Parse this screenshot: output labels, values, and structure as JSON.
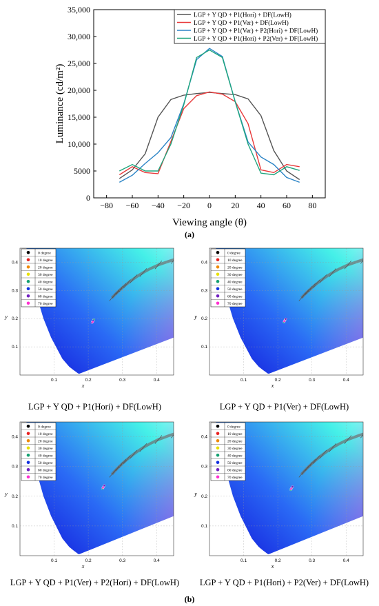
{
  "chart_data": [
    {
      "type": "line",
      "xlabel": "Viewing angle (θ)",
      "ylabel": "Luminance (cd/m²)",
      "xlim": [
        -90,
        90
      ],
      "ylim": [
        0,
        35000
      ],
      "xticks": [
        "−80",
        "−60",
        "−40",
        "−20",
        "0",
        "20",
        "40",
        "60",
        "80"
      ],
      "yticks": [
        "0",
        "5000",
        "10,000",
        "15,000",
        "20,000",
        "25,000",
        "30,000",
        "35,000"
      ],
      "legend_position": "top-right",
      "x": [
        -70,
        -60,
        -50,
        -40,
        -30,
        -20,
        -10,
        0,
        10,
        20,
        30,
        40,
        50,
        60,
        70
      ],
      "series": [
        {
          "name": "LGP + Y QD + P1(Hori) + DF(LowH)",
          "color": "#555555",
          "values": [
            3600,
            5200,
            8200,
            15000,
            18300,
            19100,
            19400,
            19600,
            19400,
            19200,
            18400,
            15300,
            8800,
            5000,
            3400
          ]
        },
        {
          "name": "LGP + Y QD + P1(Ver) + DF(LowH)",
          "color": "#e8393a",
          "values": [
            4300,
            5800,
            4700,
            4500,
            10500,
            16600,
            19000,
            19700,
            19300,
            17900,
            13800,
            5200,
            4700,
            6200,
            5800
          ]
        },
        {
          "name": "LGP + Y QD + P1(Ver) + P2(Hori) + DF(LowH)",
          "color": "#2b84c6",
          "values": [
            2900,
            4200,
            6400,
            8400,
            11200,
            17500,
            25700,
            27800,
            26300,
            17900,
            10400,
            7600,
            6200,
            3800,
            2900
          ]
        },
        {
          "name": "LGP + Y QD + P1(Hori) + P2(Ver) + DF(LowH)",
          "color": "#1fa57e",
          "values": [
            5000,
            6200,
            5000,
            5000,
            10000,
            17300,
            26100,
            27500,
            26100,
            17900,
            10000,
            4600,
            4300,
            5800,
            5100
          ]
        }
      ]
    },
    {
      "type": "scatter",
      "title": "LGP + Y QD + P1(Hori) + DF(LowH)",
      "xlabel": "x",
      "ylabel": "y",
      "xlim": [
        0,
        0.45
      ],
      "ylim": [
        0,
        0.45
      ],
      "xticks": [
        "0.1",
        "0.2",
        "0.3",
        "0.4"
      ],
      "yticks": [
        "0.1",
        "0.2",
        "0.3",
        "0.4"
      ],
      "legend": [
        "0 degree",
        "10 degree",
        "20 degree",
        "30 degree",
        "40 degree",
        "50 degree",
        "60 degree",
        "70 degree"
      ],
      "points": [
        [
          0.214,
          0.192
        ],
        [
          0.215,
          0.194
        ],
        [
          0.212,
          0.188
        ],
        [
          0.213,
          0.19
        ],
        [
          0.216,
          0.196
        ],
        [
          0.214,
          0.193
        ],
        [
          0.211,
          0.186
        ],
        [
          0.213,
          0.189
        ]
      ]
    },
    {
      "type": "scatter",
      "title": "LGP + Y QD  + P1(Ver) + DF(LowH)",
      "xlabel": "x",
      "ylabel": "y",
      "xlim": [
        0,
        0.45
      ],
      "ylim": [
        0,
        0.45
      ],
      "xticks": [
        "0.1",
        "0.2",
        "0.3",
        "0.4"
      ],
      "yticks": [
        "0.1",
        "0.2",
        "0.3",
        "0.4"
      ],
      "legend": [
        "0 degree",
        "10 degree",
        "20 degree",
        "30 degree",
        "40 degree",
        "50 degree",
        "60 degree",
        "70 degree"
      ],
      "points": [
        [
          0.22,
          0.193
        ],
        [
          0.221,
          0.195
        ],
        [
          0.219,
          0.19
        ],
        [
          0.222,
          0.197
        ],
        [
          0.218,
          0.188
        ],
        [
          0.22,
          0.192
        ],
        [
          0.223,
          0.199
        ],
        [
          0.219,
          0.191
        ]
      ]
    },
    {
      "type": "scatter",
      "title": "LGP + Y QD + P1(Ver) + P2(Hori) + DF(LowH)",
      "xlabel": "x",
      "ylabel": "y",
      "xlim": [
        0,
        0.45
      ],
      "ylim": [
        0,
        0.45
      ],
      "xticks": [
        "0.1",
        "0.2",
        "0.3",
        "0.4"
      ],
      "yticks": [
        "0.1",
        "0.2",
        "0.3",
        "0.4"
      ],
      "legend": [
        "0 degree",
        "10 degree",
        "20 degree",
        "30 degree",
        "40 degree",
        "50 degree",
        "60 degree",
        "70 degree"
      ],
      "points": [
        [
          0.244,
          0.23
        ],
        [
          0.245,
          0.232
        ],
        [
          0.243,
          0.228
        ],
        [
          0.246,
          0.234
        ],
        [
          0.242,
          0.226
        ],
        [
          0.244,
          0.231
        ],
        [
          0.247,
          0.236
        ],
        [
          0.243,
          0.229
        ]
      ]
    },
    {
      "type": "scatter",
      "title": "LGP + Y QD + P1(Hori) + P2(Ver) + DF(LowH)",
      "xlabel": "x",
      "ylabel": "y",
      "xlim": [
        0,
        0.45
      ],
      "ylim": [
        0,
        0.45
      ],
      "xticks": [
        "0.1",
        "0.2",
        "0.3",
        "0.4"
      ],
      "yticks": [
        "0.1",
        "0.2",
        "0.3",
        "0.4"
      ],
      "legend": [
        "0 degree",
        "10 degree",
        "20 degree",
        "30 degree",
        "40 degree",
        "50 degree",
        "60 degree",
        "70 degree"
      ],
      "points": [
        [
          0.24,
          0.226
        ],
        [
          0.241,
          0.228
        ],
        [
          0.239,
          0.224
        ],
        [
          0.242,
          0.23
        ],
        [
          0.238,
          0.222
        ],
        [
          0.24,
          0.227
        ],
        [
          0.243,
          0.232
        ],
        [
          0.239,
          0.225
        ]
      ]
    }
  ],
  "legend_dot_colors": [
    "#000000",
    "#e82020",
    "#f08a00",
    "#e8e000",
    "#12a070",
    "#1030e0",
    "#7020c0",
    "#ff30d0"
  ],
  "captions": {
    "a": "(a)",
    "b": "(b)"
  }
}
